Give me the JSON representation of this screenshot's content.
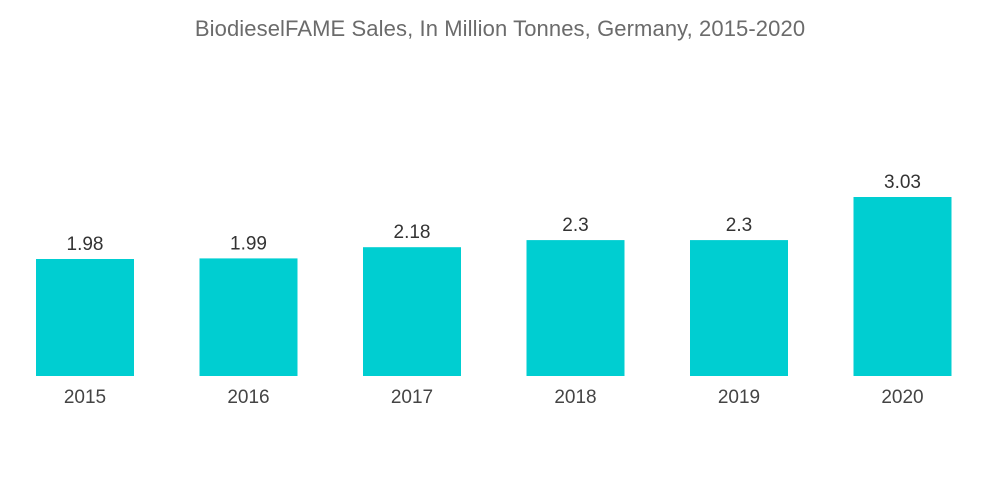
{
  "chart_data": {
    "type": "bar",
    "title": "BiodieselFAME Sales, In Million Tonnes, Germany, 2015-2020",
    "xlabel": "",
    "ylabel": "",
    "categories": [
      "2015",
      "2016",
      "2017",
      "2018",
      "2019",
      "2020"
    ],
    "values": [
      1.98,
      1.99,
      2.18,
      2.3,
      2.3,
      3.03
    ],
    "value_labels": [
      "1.98",
      "1.99",
      "2.18",
      "2.3",
      "2.3",
      "3.03"
    ],
    "ylim": [
      0,
      3.03
    ],
    "grid": false,
    "legend": "none",
    "colors": {
      "bar": "#00ced1"
    }
  }
}
